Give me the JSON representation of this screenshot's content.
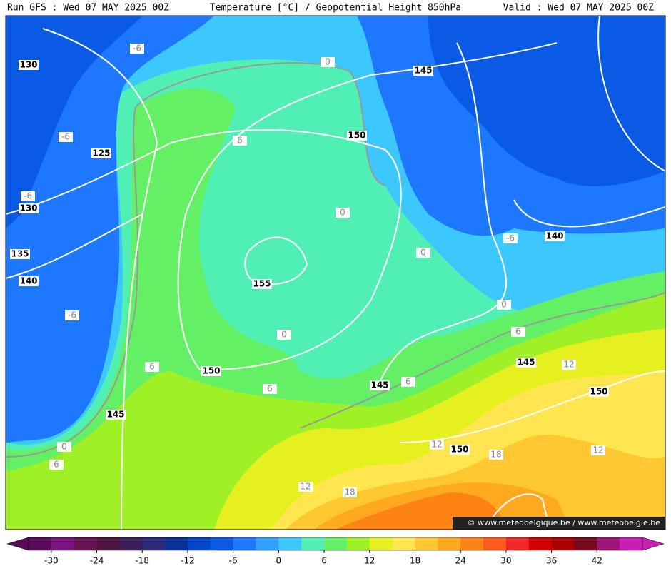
{
  "header": {
    "left": "Run GFS : Wed 07 MAY 2025 00Z",
    "center": "Temperature [°C] / Geopotential Height 850hPa",
    "right": "Valid : Wed 07 MAY 2025 00Z"
  },
  "height_labels": [
    130,
    125,
    130,
    135,
    140,
    145,
    150,
    155,
    150,
    145,
    145,
    150,
    150,
    140,
    145
  ],
  "temperature_labels": [
    -6,
    -6,
    -6,
    -6,
    -6,
    0,
    0,
    0,
    0,
    0,
    0,
    6,
    6,
    6,
    6,
    6,
    6,
    12,
    12,
    12,
    12,
    18,
    18
  ],
  "watermark": "© www.meteobelgique.be / www.meteobelgie.be",
  "colorbar": {
    "ticks": [
      -30,
      -24,
      -18,
      -12,
      -6,
      0,
      6,
      12,
      18,
      24,
      30,
      36,
      42
    ],
    "colors": [
      "#5a0a5a",
      "#7a1480",
      "#641450",
      "#501440",
      "#3c1e5a",
      "#2a2a78",
      "#0a3296",
      "#0046c8",
      "#0a5ae6",
      "#1e78ff",
      "#32a0ff",
      "#3cc8ff",
      "#50f0b4",
      "#64f064",
      "#a0f028",
      "#e6f01e",
      "#ffe650",
      "#ffc832",
      "#ffaa1e",
      "#ff8214",
      "#ff5a1e",
      "#f02828",
      "#d20000",
      "#aa0000",
      "#780a1e",
      "#a0147a",
      "#c81eb4"
    ]
  }
}
